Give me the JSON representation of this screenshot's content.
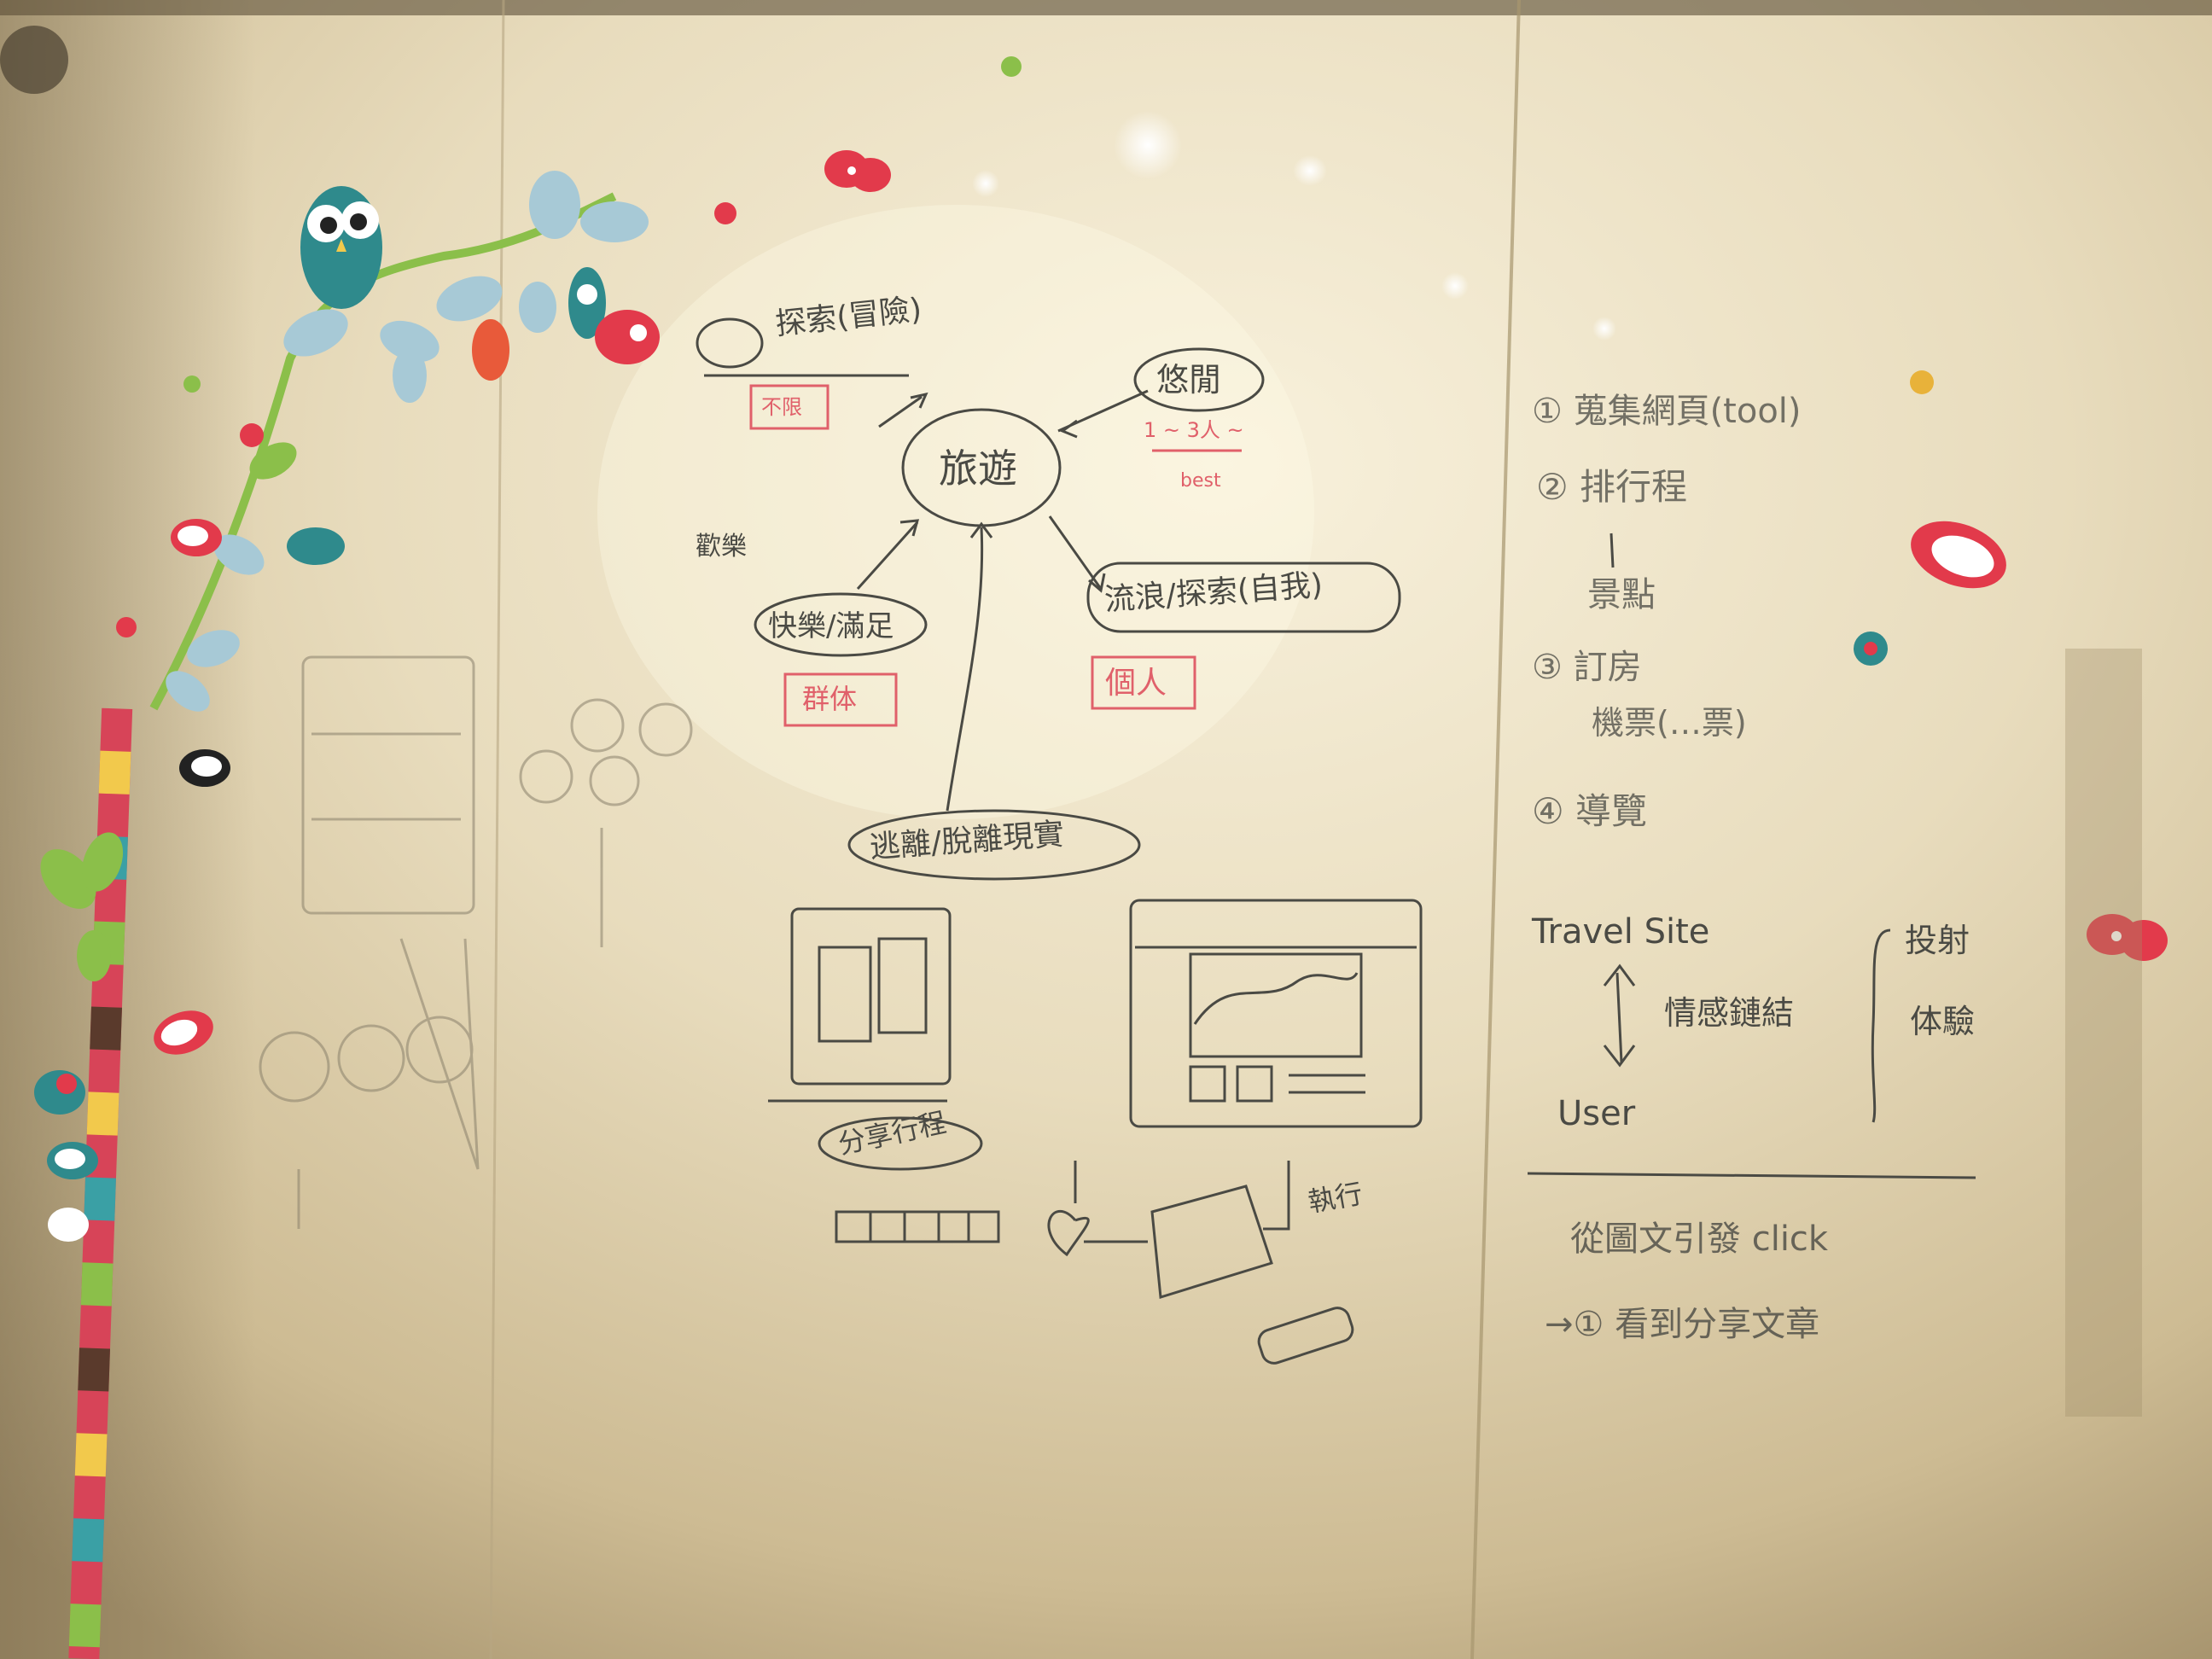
{
  "colors": {
    "wall_light": "#f3e9cf",
    "wall_mid": "#d9c9a4",
    "wall_dark": "#9c8a66",
    "marker": "#4a4a44",
    "red_marker": "#e0606a",
    "teal": "#2f8a8c",
    "leaf_green": "#8bbf4a",
    "sticker_red": "#e23a4b"
  },
  "mindmap": {
    "center": "旅遊",
    "node_explore_adventure": "探索(冒險)",
    "node_explore_tag": "不限",
    "node_leisure": "悠閒",
    "node_leisure_count": "1 ~ 3人 ~",
    "node_leisure_tag": "best",
    "node_welcome": "歡樂",
    "node_happy": "快樂/滿足",
    "node_happy_tag": "群体",
    "node_wander": "流浪/探索(自我)",
    "node_wander_tag": "個人",
    "node_escape": "逃離/脫離現實"
  },
  "sketches": {
    "share_itinerary": "分享行程",
    "execute": "執行"
  },
  "right_panel": {
    "steps": [
      "① 蒐集網頁(tool)",
      "② 排行程",
      "景點",
      "③ 訂房",
      "機票(…票)",
      "④ 導覽"
    ],
    "travel_site": "Travel Site",
    "emotion_link": "情感鏈結",
    "user": "User",
    "project": "投射",
    "experience": "体驗",
    "flow_line": "從圖文引發 click",
    "flow_result": "→① 看到分享文章"
  }
}
